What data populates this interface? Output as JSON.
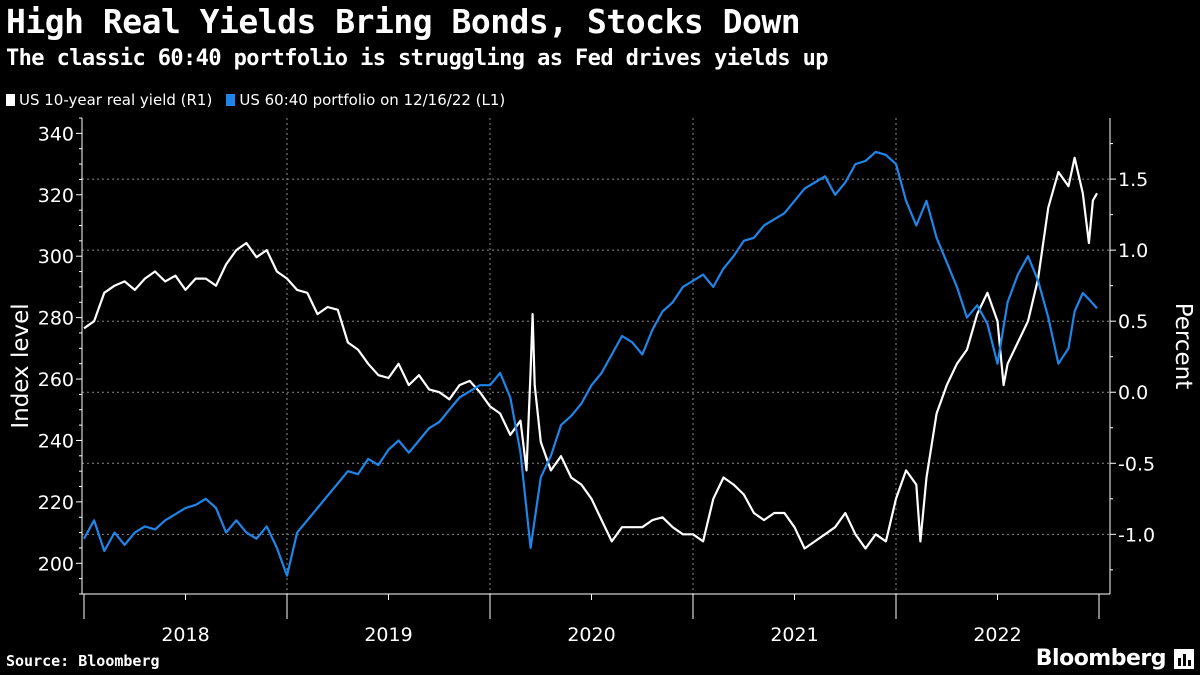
{
  "header": {
    "title": "High Real Yields Bring Bonds, Stocks Down",
    "subtitle": "The classic 60:40 portfolio is struggling as Fed drives yields up"
  },
  "footer": {
    "source": "Source: Bloomberg",
    "brand": "Bloomberg"
  },
  "colors": {
    "real_yield": "#ffffff",
    "portfolio": "#1f85e8",
    "grid": "#8a8a8a",
    "axis": "#ffffff"
  },
  "chart_data": {
    "type": "line",
    "title": "High Real Yields Bring Bonds, Stocks Down",
    "subtitle": "The classic 60:40 portfolio is struggling as Fed drives yields up",
    "xlabel": "",
    "x_categories": [
      "2018",
      "2019",
      "2020",
      "2021",
      "2022"
    ],
    "x_range": [
      2018.0,
      2022.99
    ],
    "left_axis": {
      "label": "Index level",
      "ylim": [
        190,
        345
      ],
      "ticks": [
        200,
        220,
        240,
        260,
        280,
        300,
        320,
        340
      ]
    },
    "right_axis": {
      "label": "Percent",
      "ylim": [
        -1.42,
        1.93
      ],
      "ticks": [
        1.5,
        1.0,
        0.5,
        0.0,
        -0.5,
        -1.0
      ],
      "tick_labels": [
        "1.5",
        "1.0",
        "0.5",
        "0.0",
        "-0.5",
        "-1.0"
      ]
    },
    "grid": true,
    "legend_position": "top-left",
    "series": [
      {
        "name": "US 10-year real yield (R1)",
        "axis": "right",
        "color": "#ffffff",
        "points": [
          [
            2018.0,
            0.45
          ],
          [
            2018.05,
            0.5
          ],
          [
            2018.1,
            0.7
          ],
          [
            2018.15,
            0.75
          ],
          [
            2018.2,
            0.78
          ],
          [
            2018.25,
            0.72
          ],
          [
            2018.3,
            0.8
          ],
          [
            2018.35,
            0.85
          ],
          [
            2018.4,
            0.78
          ],
          [
            2018.45,
            0.82
          ],
          [
            2018.5,
            0.72
          ],
          [
            2018.55,
            0.8
          ],
          [
            2018.6,
            0.8
          ],
          [
            2018.65,
            0.75
          ],
          [
            2018.7,
            0.9
          ],
          [
            2018.75,
            1.0
          ],
          [
            2018.8,
            1.05
          ],
          [
            2018.85,
            0.95
          ],
          [
            2018.9,
            1.0
          ],
          [
            2018.95,
            0.85
          ],
          [
            2019.0,
            0.8
          ],
          [
            2019.05,
            0.72
          ],
          [
            2019.1,
            0.7
          ],
          [
            2019.15,
            0.55
          ],
          [
            2019.2,
            0.6
          ],
          [
            2019.25,
            0.58
          ],
          [
            2019.3,
            0.35
          ],
          [
            2019.35,
            0.3
          ],
          [
            2019.4,
            0.2
          ],
          [
            2019.45,
            0.12
          ],
          [
            2019.5,
            0.1
          ],
          [
            2019.55,
            0.2
          ],
          [
            2019.6,
            0.05
          ],
          [
            2019.65,
            0.12
          ],
          [
            2019.7,
            0.02
          ],
          [
            2019.75,
            0.0
          ],
          [
            2019.8,
            -0.05
          ],
          [
            2019.85,
            0.05
          ],
          [
            2019.9,
            0.08
          ],
          [
            2019.95,
            0.0
          ],
          [
            2020.0,
            -0.1
          ],
          [
            2020.05,
            -0.15
          ],
          [
            2020.1,
            -0.3
          ],
          [
            2020.15,
            -0.2
          ],
          [
            2020.18,
            -0.55
          ],
          [
            2020.2,
            0.15
          ],
          [
            2020.21,
            0.55
          ],
          [
            2020.22,
            0.05
          ],
          [
            2020.25,
            -0.35
          ],
          [
            2020.3,
            -0.55
          ],
          [
            2020.35,
            -0.45
          ],
          [
            2020.4,
            -0.6
          ],
          [
            2020.45,
            -0.65
          ],
          [
            2020.5,
            -0.75
          ],
          [
            2020.55,
            -0.9
          ],
          [
            2020.6,
            -1.05
          ],
          [
            2020.65,
            -0.95
          ],
          [
            2020.7,
            -0.95
          ],
          [
            2020.75,
            -0.95
          ],
          [
            2020.8,
            -0.9
          ],
          [
            2020.85,
            -0.88
          ],
          [
            2020.9,
            -0.95
          ],
          [
            2020.95,
            -1.0
          ],
          [
            2021.0,
            -1.0
          ],
          [
            2021.05,
            -1.05
          ],
          [
            2021.1,
            -0.75
          ],
          [
            2021.15,
            -0.6
          ],
          [
            2021.2,
            -0.65
          ],
          [
            2021.25,
            -0.72
          ],
          [
            2021.3,
            -0.85
          ],
          [
            2021.35,
            -0.9
          ],
          [
            2021.4,
            -0.85
          ],
          [
            2021.45,
            -0.85
          ],
          [
            2021.5,
            -0.95
          ],
          [
            2021.55,
            -1.1
          ],
          [
            2021.6,
            -1.05
          ],
          [
            2021.65,
            -1.0
          ],
          [
            2021.7,
            -0.95
          ],
          [
            2021.75,
            -0.85
          ],
          [
            2021.8,
            -1.0
          ],
          [
            2021.85,
            -1.1
          ],
          [
            2021.9,
            -1.0
          ],
          [
            2021.95,
            -1.05
          ],
          [
            2022.0,
            -0.75
          ],
          [
            2022.05,
            -0.55
          ],
          [
            2022.1,
            -0.65
          ],
          [
            2022.12,
            -1.05
          ],
          [
            2022.15,
            -0.6
          ],
          [
            2022.2,
            -0.15
          ],
          [
            2022.25,
            0.05
          ],
          [
            2022.3,
            0.2
          ],
          [
            2022.35,
            0.3
          ],
          [
            2022.4,
            0.55
          ],
          [
            2022.45,
            0.7
          ],
          [
            2022.5,
            0.5
          ],
          [
            2022.53,
            0.05
          ],
          [
            2022.55,
            0.2
          ],
          [
            2022.6,
            0.35
          ],
          [
            2022.65,
            0.5
          ],
          [
            2022.7,
            0.8
          ],
          [
            2022.75,
            1.3
          ],
          [
            2022.8,
            1.55
          ],
          [
            2022.85,
            1.45
          ],
          [
            2022.88,
            1.65
          ],
          [
            2022.92,
            1.4
          ],
          [
            2022.95,
            1.05
          ],
          [
            2022.97,
            1.35
          ],
          [
            2022.99,
            1.4
          ]
        ]
      },
      {
        "name": "US 60:40 portfolio on 12/16/22 (L1)",
        "axis": "left",
        "color": "#1f85e8",
        "points": [
          [
            2018.0,
            208
          ],
          [
            2018.05,
            214
          ],
          [
            2018.1,
            204
          ],
          [
            2018.15,
            210
          ],
          [
            2018.2,
            206
          ],
          [
            2018.25,
            210
          ],
          [
            2018.3,
            212
          ],
          [
            2018.35,
            211
          ],
          [
            2018.4,
            214
          ],
          [
            2018.45,
            216
          ],
          [
            2018.5,
            218
          ],
          [
            2018.55,
            219
          ],
          [
            2018.6,
            221
          ],
          [
            2018.65,
            218
          ],
          [
            2018.7,
            210
          ],
          [
            2018.75,
            214
          ],
          [
            2018.8,
            210
          ],
          [
            2018.85,
            208
          ],
          [
            2018.9,
            212
          ],
          [
            2018.95,
            205
          ],
          [
            2019.0,
            196
          ],
          [
            2019.05,
            210
          ],
          [
            2019.1,
            214
          ],
          [
            2019.15,
            218
          ],
          [
            2019.2,
            222
          ],
          [
            2019.25,
            226
          ],
          [
            2019.3,
            230
          ],
          [
            2019.35,
            229
          ],
          [
            2019.4,
            234
          ],
          [
            2019.45,
            232
          ],
          [
            2019.5,
            237
          ],
          [
            2019.55,
            240
          ],
          [
            2019.6,
            236
          ],
          [
            2019.65,
            240
          ],
          [
            2019.7,
            244
          ],
          [
            2019.75,
            246
          ],
          [
            2019.8,
            250
          ],
          [
            2019.85,
            254
          ],
          [
            2019.9,
            256
          ],
          [
            2019.95,
            258
          ],
          [
            2020.0,
            258
          ],
          [
            2020.05,
            262
          ],
          [
            2020.1,
            254
          ],
          [
            2020.15,
            236
          ],
          [
            2020.2,
            205
          ],
          [
            2020.25,
            228
          ],
          [
            2020.3,
            235
          ],
          [
            2020.35,
            245
          ],
          [
            2020.4,
            248
          ],
          [
            2020.45,
            252
          ],
          [
            2020.5,
            258
          ],
          [
            2020.55,
            262
          ],
          [
            2020.6,
            268
          ],
          [
            2020.65,
            274
          ],
          [
            2020.7,
            272
          ],
          [
            2020.75,
            268
          ],
          [
            2020.8,
            276
          ],
          [
            2020.85,
            282
          ],
          [
            2020.9,
            285
          ],
          [
            2020.95,
            290
          ],
          [
            2021.0,
            292
          ],
          [
            2021.05,
            294
          ],
          [
            2021.1,
            290
          ],
          [
            2021.15,
            296
          ],
          [
            2021.2,
            300
          ],
          [
            2021.25,
            305
          ],
          [
            2021.3,
            306
          ],
          [
            2021.35,
            310
          ],
          [
            2021.4,
            312
          ],
          [
            2021.45,
            314
          ],
          [
            2021.5,
            318
          ],
          [
            2021.55,
            322
          ],
          [
            2021.6,
            324
          ],
          [
            2021.65,
            326
          ],
          [
            2021.7,
            320
          ],
          [
            2021.75,
            324
          ],
          [
            2021.8,
            330
          ],
          [
            2021.85,
            331
          ],
          [
            2021.9,
            334
          ],
          [
            2021.95,
            333
          ],
          [
            2022.0,
            330
          ],
          [
            2022.05,
            318
          ],
          [
            2022.1,
            310
          ],
          [
            2022.15,
            318
          ],
          [
            2022.2,
            306
          ],
          [
            2022.25,
            298
          ],
          [
            2022.3,
            290
          ],
          [
            2022.35,
            280
          ],
          [
            2022.4,
            284
          ],
          [
            2022.45,
            278
          ],
          [
            2022.5,
            265
          ],
          [
            2022.55,
            285
          ],
          [
            2022.6,
            294
          ],
          [
            2022.65,
            300
          ],
          [
            2022.7,
            292
          ],
          [
            2022.75,
            280
          ],
          [
            2022.8,
            265
          ],
          [
            2022.85,
            270
          ],
          [
            2022.88,
            282
          ],
          [
            2022.92,
            288
          ],
          [
            2022.95,
            286
          ],
          [
            2022.99,
            283
          ]
        ]
      }
    ]
  }
}
